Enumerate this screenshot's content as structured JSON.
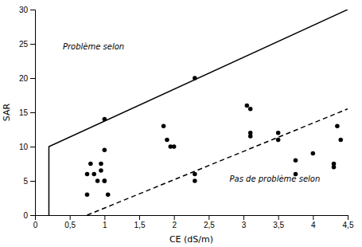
{
  "chart_data": {
    "type": "scatter",
    "xlabel": "CE (dS/m)",
    "ylabel": "SAR",
    "xlim": [
      0,
      4.5
    ],
    "ylim": [
      0,
      30
    ],
    "xticks": [
      0,
      {
        "value": 0.5,
        "label": "0,5"
      },
      1,
      {
        "value": 1.5,
        "label": "1,5"
      },
      2,
      {
        "value": 2.5,
        "label": "2,5"
      },
      3,
      {
        "value": 3.5,
        "label": "3,5"
      },
      4,
      {
        "value": 4.5,
        "label": "4,5"
      }
    ],
    "yticks": [
      0,
      5,
      10,
      15,
      20,
      25,
      30
    ],
    "grid": false,
    "series": [
      {
        "type": "scatter",
        "marker": "circle",
        "color": "#000000",
        "x": [
          0.75,
          0.75,
          0.8,
          0.85,
          0.9,
          0.95,
          0.95,
          1.0,
          1.0,
          1.0,
          1.0,
          1.05,
          2.3,
          1.85,
          1.9,
          1.95,
          2.0,
          2.3,
          2.3,
          3.05,
          3.1,
          3.1,
          3.1,
          3.5,
          3.5,
          3.75,
          3.75,
          4.0,
          4.3,
          4.3,
          4.35,
          4.4
        ],
        "values": [
          3,
          6,
          7.5,
          6,
          5,
          6.5,
          7.5,
          5,
          5,
          9.5,
          14,
          3,
          20,
          13,
          11,
          10,
          10,
          6,
          5,
          16,
          15.5,
          12,
          11.5,
          12,
          11,
          8,
          6,
          9,
          7,
          7.5,
          13,
          11
        ]
      },
      {
        "type": "line",
        "line_style": "solid",
        "color": "#000000",
        "x": [
          0.2,
          0.2,
          4.5
        ],
        "values": [
          0,
          10,
          30
        ]
      },
      {
        "type": "line",
        "line_style": "dashed",
        "color": "#000000",
        "x": [
          0.75,
          4.5
        ],
        "values": [
          0,
          15.5
        ]
      }
    ],
    "annotations": [
      {
        "text": "Problème selon",
        "x": 0.4,
        "y": 24.5
      },
      {
        "text": "Pas de problème selon",
        "x": 2.8,
        "y": 5.2
      }
    ]
  }
}
